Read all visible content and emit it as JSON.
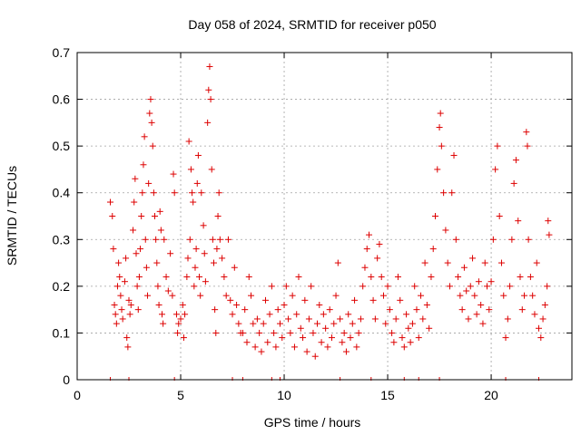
{
  "chart_data": {
    "type": "scatter",
    "title": "Day 058 of 2024, SRMTID for receiver p050",
    "xlabel": "GPS time / hours",
    "ylabel": "SRMTID / TECUs",
    "xlim": [
      0,
      23.9
    ],
    "ylim": [
      0,
      0.7
    ],
    "xticks": [
      0,
      5,
      10,
      15,
      20
    ],
    "yticks": [
      0,
      0.1,
      0.2,
      0.3,
      0.4,
      0.5,
      0.6,
      0.7
    ],
    "xtick_labels": [
      "0",
      "5",
      "10",
      "15",
      "20"
    ],
    "ytick_labels": [
      "0",
      "0.1",
      "0.2",
      "0.3",
      "0.4",
      "0.5",
      "0.6",
      "0.7"
    ],
    "grid": true,
    "marker": "+",
    "color": "#dd0000",
    "series": [
      {
        "name": "SRMTID",
        "points": [
          [
            1.6,
            0.38
          ],
          [
            1.7,
            0.35
          ],
          [
            1.75,
            0.28
          ],
          [
            1.8,
            0.16
          ],
          [
            1.85,
            0.14
          ],
          [
            1.9,
            0.12
          ],
          [
            1.95,
            0.2
          ],
          [
            2.0,
            0.25
          ],
          [
            2.05,
            0.22
          ],
          [
            2.1,
            0.18
          ],
          [
            2.15,
            0.15
          ],
          [
            2.2,
            0.13
          ],
          [
            2.3,
            0.21
          ],
          [
            2.35,
            0.26
          ],
          [
            2.4,
            0.09
          ],
          [
            2.45,
            0.07
          ],
          [
            2.5,
            0.17
          ],
          [
            2.55,
            0.14
          ],
          [
            2.6,
            0.16
          ],
          [
            2.7,
            0.32
          ],
          [
            2.75,
            0.38
          ],
          [
            2.8,
            0.43
          ],
          [
            2.85,
            0.27
          ],
          [
            2.9,
            0.2
          ],
          [
            2.95,
            0.15
          ],
          [
            3.0,
            0.22
          ],
          [
            3.05,
            0.28
          ],
          [
            3.1,
            0.35
          ],
          [
            3.15,
            0.4
          ],
          [
            3.2,
            0.46
          ],
          [
            3.25,
            0.52
          ],
          [
            3.3,
            0.3
          ],
          [
            3.35,
            0.24
          ],
          [
            3.4,
            0.18
          ],
          [
            3.45,
            0.42
          ],
          [
            3.5,
            0.57
          ],
          [
            3.55,
            0.6
          ],
          [
            3.6,
            0.55
          ],
          [
            3.65,
            0.5
          ],
          [
            3.7,
            0.4
          ],
          [
            3.75,
            0.35
          ],
          [
            3.8,
            0.3
          ],
          [
            3.85,
            0.25
          ],
          [
            3.9,
            0.2
          ],
          [
            3.95,
            0.16
          ],
          [
            4.0,
            0.36
          ],
          [
            4.05,
            0.32
          ],
          [
            4.1,
            0.14
          ],
          [
            4.15,
            0.12
          ],
          [
            4.2,
            0.3
          ],
          [
            4.3,
            0.22
          ],
          [
            4.4,
            0.19
          ],
          [
            4.5,
            0.27
          ],
          [
            4.6,
            0.18
          ],
          [
            4.65,
            0.44
          ],
          [
            4.7,
            0.4
          ],
          [
            4.8,
            0.14
          ],
          [
            4.85,
            0.1
          ],
          [
            4.9,
            0.12
          ],
          [
            5.0,
            0.13
          ],
          [
            5.1,
            0.16
          ],
          [
            5.15,
            0.09
          ],
          [
            5.2,
            0.14
          ],
          [
            5.3,
            0.22
          ],
          [
            5.35,
            0.26
          ],
          [
            5.4,
            0.51
          ],
          [
            5.45,
            0.3
          ],
          [
            5.5,
            0.45
          ],
          [
            5.55,
            0.4
          ],
          [
            5.6,
            0.38
          ],
          [
            5.65,
            0.2
          ],
          [
            5.7,
            0.24
          ],
          [
            5.75,
            0.28
          ],
          [
            5.8,
            0.42
          ],
          [
            5.85,
            0.48
          ],
          [
            5.9,
            0.22
          ],
          [
            5.95,
            0.18
          ],
          [
            6.0,
            0.4
          ],
          [
            6.1,
            0.33
          ],
          [
            6.15,
            0.27
          ],
          [
            6.2,
            0.21
          ],
          [
            6.3,
            0.55
          ],
          [
            6.35,
            0.62
          ],
          [
            6.4,
            0.67
          ],
          [
            6.45,
            0.6
          ],
          [
            6.5,
            0.45
          ],
          [
            6.55,
            0.3
          ],
          [
            6.6,
            0.25
          ],
          [
            6.65,
            0.15
          ],
          [
            6.7,
            0.1
          ],
          [
            6.75,
            0.28
          ],
          [
            6.8,
            0.35
          ],
          [
            6.85,
            0.4
          ],
          [
            6.9,
            0.3
          ],
          [
            7.0,
            0.26
          ],
          [
            7.1,
            0.22
          ],
          [
            7.2,
            0.18
          ],
          [
            7.3,
            0.3
          ],
          [
            7.4,
            0.17
          ],
          [
            7.5,
            0.14
          ],
          [
            7.6,
            0.24
          ],
          [
            7.7,
            0.16
          ],
          [
            7.8,
            0.12
          ],
          [
            7.9,
            0.1
          ],
          [
            8.0,
            0.1
          ],
          [
            8.1,
            0.15
          ],
          [
            8.2,
            0.08
          ],
          [
            8.3,
            0.22
          ],
          [
            8.4,
            0.18
          ],
          [
            8.5,
            0.12
          ],
          [
            8.6,
            0.07
          ],
          [
            8.7,
            0.13
          ],
          [
            8.8,
            0.1
          ],
          [
            8.9,
            0.06
          ],
          [
            9.0,
            0.12
          ],
          [
            9.1,
            0.17
          ],
          [
            9.2,
            0.08
          ],
          [
            9.3,
            0.14
          ],
          [
            9.4,
            0.2
          ],
          [
            9.5,
            0.1
          ],
          [
            9.6,
            0.07
          ],
          [
            9.7,
            0.15
          ],
          [
            9.8,
            0.12
          ],
          [
            9.9,
            0.09
          ],
          [
            10.0,
            0.16
          ],
          [
            10.1,
            0.2
          ],
          [
            10.2,
            0.13
          ],
          [
            10.3,
            0.1
          ],
          [
            10.4,
            0.18
          ],
          [
            10.5,
            0.07
          ],
          [
            10.6,
            0.14
          ],
          [
            10.7,
            0.22
          ],
          [
            10.8,
            0.11
          ],
          [
            10.9,
            0.09
          ],
          [
            11.0,
            0.17
          ],
          [
            11.1,
            0.06
          ],
          [
            11.2,
            0.13
          ],
          [
            11.3,
            0.2
          ],
          [
            11.4,
            0.1
          ],
          [
            11.5,
            0.05
          ],
          [
            11.6,
            0.12
          ],
          [
            11.7,
            0.16
          ],
          [
            11.8,
            0.08
          ],
          [
            11.9,
            0.14
          ],
          [
            12.0,
            0.11
          ],
          [
            12.1,
            0.07
          ],
          [
            12.2,
            0.15
          ],
          [
            12.3,
            0.09
          ],
          [
            12.4,
            0.12
          ],
          [
            12.5,
            0.18
          ],
          [
            12.6,
            0.25
          ],
          [
            12.7,
            0.13
          ],
          [
            12.8,
            0.08
          ],
          [
            12.9,
            0.1
          ],
          [
            13.0,
            0.06
          ],
          [
            13.1,
            0.14
          ],
          [
            13.2,
            0.09
          ],
          [
            13.3,
            0.12
          ],
          [
            13.4,
            0.17
          ],
          [
            13.5,
            0.07
          ],
          [
            13.6,
            0.1
          ],
          [
            13.7,
            0.13
          ],
          [
            13.8,
            0.2
          ],
          [
            13.9,
            0.24
          ],
          [
            14.0,
            0.28
          ],
          [
            14.1,
            0.31
          ],
          [
            14.2,
            0.22
          ],
          [
            14.3,
            0.17
          ],
          [
            14.4,
            0.13
          ],
          [
            14.5,
            0.26
          ],
          [
            14.6,
            0.29
          ],
          [
            14.7,
            0.22
          ],
          [
            14.8,
            0.18
          ],
          [
            14.9,
            0.12
          ],
          [
            15.0,
            0.2
          ],
          [
            15.1,
            0.15
          ],
          [
            15.2,
            0.1
          ],
          [
            15.3,
            0.08
          ],
          [
            15.4,
            0.13
          ],
          [
            15.5,
            0.22
          ],
          [
            15.6,
            0.17
          ],
          [
            15.7,
            0.09
          ],
          [
            15.8,
            0.07
          ],
          [
            15.9,
            0.14
          ],
          [
            16.0,
            0.11
          ],
          [
            16.1,
            0.08
          ],
          [
            16.2,
            0.12
          ],
          [
            16.3,
            0.2
          ],
          [
            16.4,
            0.15
          ],
          [
            16.5,
            0.09
          ],
          [
            16.6,
            0.18
          ],
          [
            16.7,
            0.13
          ],
          [
            16.8,
            0.25
          ],
          [
            16.9,
            0.16
          ],
          [
            17.0,
            0.11
          ],
          [
            17.1,
            0.22
          ],
          [
            17.2,
            0.28
          ],
          [
            17.3,
            0.35
          ],
          [
            17.4,
            0.45
          ],
          [
            17.5,
            0.54
          ],
          [
            17.55,
            0.57
          ],
          [
            17.6,
            0.5
          ],
          [
            17.7,
            0.4
          ],
          [
            17.8,
            0.32
          ],
          [
            17.9,
            0.25
          ],
          [
            18.0,
            0.2
          ],
          [
            18.1,
            0.4
          ],
          [
            18.2,
            0.48
          ],
          [
            18.3,
            0.3
          ],
          [
            18.4,
            0.22
          ],
          [
            18.5,
            0.18
          ],
          [
            18.6,
            0.15
          ],
          [
            18.7,
            0.24
          ],
          [
            18.8,
            0.19
          ],
          [
            18.9,
            0.13
          ],
          [
            19.0,
            0.2
          ],
          [
            19.1,
            0.26
          ],
          [
            19.2,
            0.18
          ],
          [
            19.3,
            0.14
          ],
          [
            19.4,
            0.21
          ],
          [
            19.5,
            0.16
          ],
          [
            19.6,
            0.12
          ],
          [
            19.7,
            0.25
          ],
          [
            19.8,
            0.2
          ],
          [
            19.9,
            0.15
          ],
          [
            20.0,
            0.21
          ],
          [
            20.1,
            0.3
          ],
          [
            20.2,
            0.45
          ],
          [
            20.3,
            0.5
          ],
          [
            20.4,
            0.35
          ],
          [
            20.5,
            0.25
          ],
          [
            20.6,
            0.18
          ],
          [
            20.7,
            0.09
          ],
          [
            20.8,
            0.13
          ],
          [
            20.9,
            0.2
          ],
          [
            21.0,
            0.3
          ],
          [
            21.1,
            0.42
          ],
          [
            21.2,
            0.47
          ],
          [
            21.3,
            0.34
          ],
          [
            21.4,
            0.22
          ],
          [
            21.5,
            0.15
          ],
          [
            21.6,
            0.18
          ],
          [
            21.7,
            0.53
          ],
          [
            21.75,
            0.5
          ],
          [
            21.8,
            0.3
          ],
          [
            21.9,
            0.22
          ],
          [
            22.0,
            0.18
          ],
          [
            22.1,
            0.14
          ],
          [
            22.2,
            0.25
          ],
          [
            22.3,
            0.11
          ],
          [
            22.4,
            0.09
          ],
          [
            22.5,
            0.13
          ],
          [
            22.6,
            0.16
          ],
          [
            22.7,
            0.2
          ],
          [
            22.75,
            0.34
          ],
          [
            22.8,
            0.31
          ]
        ]
      }
    ],
    "gap_markers": [
      1.6,
      2.5,
      4.7,
      7.5,
      8.0,
      9.4,
      9.8,
      12.7,
      14.2,
      15.8,
      16.5,
      17.5,
      20.7,
      22.3
    ]
  }
}
